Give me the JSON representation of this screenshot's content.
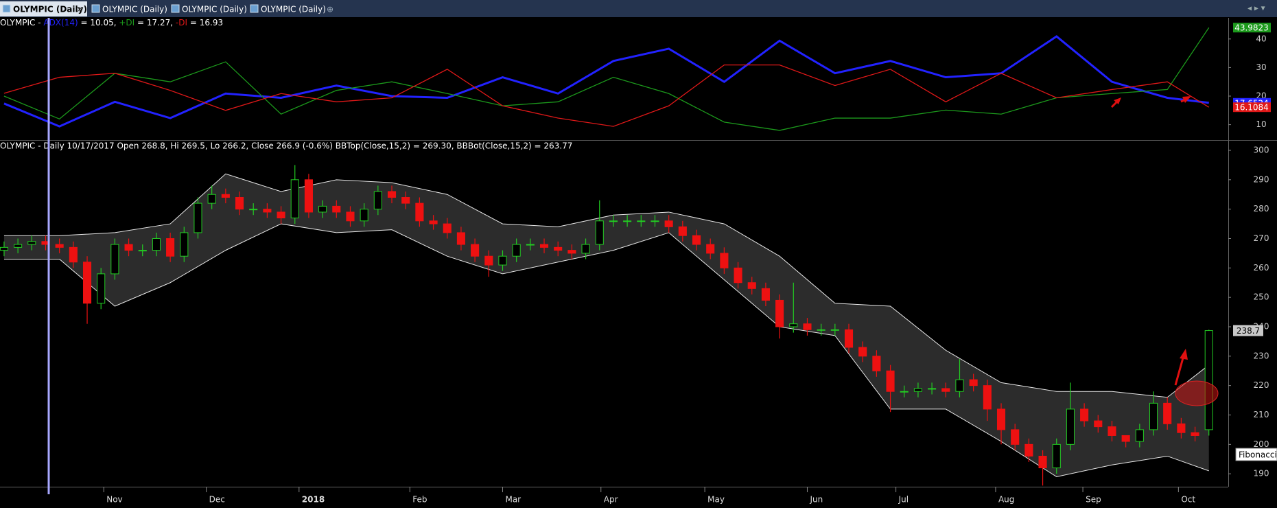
{
  "tabs": [
    "OLYMPIC (Daily)",
    "OLYMPIC (Daily)",
    "OLYMPIC (Daily)",
    "OLYMPIC (Daily)"
  ],
  "chart_data": [
    {
      "type": "line",
      "title": "OLYMPIC -",
      "x": [
        0,
        4,
        8,
        12,
        16,
        20,
        24,
        28,
        32,
        36,
        40,
        44,
        48,
        52,
        56,
        60,
        64,
        68,
        72,
        76,
        80,
        84,
        87
      ],
      "series": [
        {
          "name": "ADX(14)",
          "readout": "= 10.05,",
          "color": "#2222ff",
          "values": [
            17.4,
            9.4,
            18,
            12.3,
            20.9,
            19.4,
            23.7,
            20,
            19.4,
            26.6,
            20.9,
            32.3,
            36.6,
            25,
            39.4,
            28,
            32.3,
            26.6,
            28,
            40.9,
            25,
            19.4,
            17.6524
          ]
        },
        {
          "name": "+DI",
          "readout": "= 17.27,",
          "color": "#1c9a1c",
          "values": [
            20,
            12,
            28,
            25,
            32,
            13.7,
            22,
            25,
            20.9,
            16.6,
            18,
            26.6,
            20.9,
            10.9,
            8,
            12.3,
            12.3,
            15.1,
            13.7,
            19.4,
            20.9,
            22.3,
            43.9823
          ]
        },
        {
          "name": "-DI",
          "readout": "= 16.93",
          "color": "#e01818",
          "values": [
            21,
            26.6,
            28,
            22,
            15,
            20.9,
            18,
            19.4,
            29.4,
            16.6,
            12.3,
            9.4,
            16.6,
            30.9,
            30.9,
            23.7,
            29.4,
            18,
            28,
            19.4,
            22.3,
            25,
            16.1084
          ]
        }
      ],
      "xlim": [
        -0.294,
        88.4
      ],
      "ylim": [
        5.1,
        47.4
      ],
      "yticks": [
        10,
        20,
        30,
        40
      ]
    },
    {
      "type": "candlestick",
      "title": "OLYMPIC - Daily 10/17/2017 Open 268.8, Hi 269.5, Lo 266.2, Close 266.9 (-0.6%) BBTop(Close,15,2) = 269.30, BBBot(Close,15,2) = 263.77",
      "open": [
        266,
        267,
        268,
        269,
        268,
        267,
        262,
        248,
        258,
        268,
        266,
        266,
        270,
        264,
        272,
        282,
        285,
        284,
        280,
        280,
        279,
        277,
        290,
        279,
        281,
        279,
        276,
        280,
        286,
        284,
        282,
        276,
        275,
        272,
        268,
        264,
        261,
        264,
        268,
        268,
        267,
        266,
        265,
        268,
        276,
        276,
        276,
        276,
        276,
        274,
        271,
        268,
        265,
        260,
        255,
        253,
        249,
        240,
        241,
        239,
        239,
        239,
        233,
        230,
        225,
        218,
        218,
        219,
        219,
        218,
        222,
        220,
        212,
        205,
        200,
        196,
        192,
        200,
        212,
        208,
        206,
        203,
        201,
        205,
        214,
        207,
        204,
        205
      ],
      "high": [
        269,
        270,
        271,
        271,
        270,
        269,
        264,
        260,
        270,
        270,
        268,
        272,
        272,
        274,
        284,
        288,
        287,
        286,
        282,
        282,
        281,
        295,
        292,
        283,
        283,
        281,
        282,
        288,
        288,
        286,
        284,
        278,
        277,
        274,
        270,
        266,
        266,
        270,
        270,
        270,
        269,
        268,
        270,
        283,
        278,
        278,
        278,
        278,
        278,
        276,
        273,
        270,
        267,
        262,
        257,
        255,
        251,
        255,
        243,
        241,
        241,
        241,
        235,
        232,
        227,
        220,
        221,
        221,
        221,
        229,
        224,
        222,
        214,
        207,
        202,
        198,
        202,
        221,
        214,
        210,
        208,
        203,
        207,
        218,
        216,
        209,
        206,
        239
      ],
      "low": [
        264,
        265,
        266,
        266,
        265,
        260,
        241,
        246,
        256,
        264,
        264,
        264,
        262,
        262,
        270,
        280,
        282,
        278,
        278,
        277,
        275,
        275,
        277,
        277,
        277,
        274,
        274,
        278,
        282,
        280,
        274,
        273,
        270,
        266,
        262,
        257,
        259,
        262,
        266,
        265,
        264,
        263,
        263,
        266,
        274,
        274,
        274,
        274,
        272,
        269,
        266,
        263,
        258,
        253,
        251,
        247,
        236,
        238,
        237,
        237,
        237,
        231,
        228,
        223,
        211,
        216,
        216,
        217,
        216,
        216,
        218,
        208,
        200,
        198,
        194,
        186,
        190,
        198,
        206,
        204,
        201,
        199,
        199,
        203,
        205,
        202,
        201,
        203
      ],
      "close": [
        267,
        268,
        269,
        268,
        267,
        262,
        248,
        258,
        268,
        266,
        266,
        270,
        264,
        272,
        282,
        285,
        284,
        280,
        280,
        279,
        277,
        290,
        279,
        281,
        279,
        276,
        280,
        286,
        284,
        282,
        276,
        275,
        272,
        268,
        264,
        261,
        264,
        268,
        268,
        267,
        266,
        265,
        268,
        276,
        276,
        276,
        276,
        276,
        274,
        271,
        268,
        265,
        260,
        255,
        253,
        249,
        240,
        241,
        239,
        239,
        239,
        233,
        230,
        225,
        218,
        218,
        219,
        219,
        218,
        222,
        220,
        212,
        205,
        200,
        196,
        192,
        200,
        212,
        208,
        206,
        203,
        201,
        205,
        214,
        207,
        204,
        203,
        238.7
      ],
      "up_color": "#22cc22",
      "down_color": "#ee1111",
      "bands": {
        "x": [
          0,
          4,
          8,
          12,
          16,
          20,
          24,
          28,
          32,
          36,
          40,
          44,
          48,
          52,
          56,
          60,
          64,
          68,
          72,
          76,
          80,
          84,
          87
        ],
        "top": [
          271,
          271,
          272,
          275,
          292,
          286,
          290,
          289,
          285,
          275,
          274,
          278,
          279,
          275,
          264,
          248,
          247,
          232,
          221,
          218,
          218,
          216,
          227
        ],
        "bottom": [
          263,
          263,
          247,
          255,
          266,
          275,
          272,
          273,
          264,
          258,
          262,
          266,
          272,
          256,
          240,
          237,
          212,
          212,
          201,
          189,
          193,
          196,
          191
        ],
        "color": "#e8e8e8",
        "fill": "#2c2c2c"
      },
      "side_label": "Fibonacci",
      "xlim": [
        -0.294,
        88.4
      ],
      "xticks": [
        {
          "value": 7.2,
          "label": "Nov"
        },
        {
          "value": 14.6,
          "label": "Dec"
        },
        {
          "value": 21.3,
          "label": "2018"
        },
        {
          "value": 29.3,
          "label": "Feb"
        },
        {
          "value": 36,
          "label": "Mar"
        },
        {
          "value": 43.1,
          "label": "Apr"
        },
        {
          "value": 50.6,
          "label": "May"
        },
        {
          "value": 58,
          "label": "Jun"
        },
        {
          "value": 64.4,
          "label": "Jul"
        },
        {
          "value": 71.6,
          "label": "Aug"
        },
        {
          "value": 77.9,
          "label": "Sep"
        },
        {
          "value": 84.8,
          "label": "Oct"
        }
      ],
      "ylim": [
        185.6,
        302.8
      ],
      "yticks": [
        190,
        200,
        210,
        220,
        230,
        240,
        250,
        260,
        270,
        280,
        290,
        300
      ]
    }
  ]
}
